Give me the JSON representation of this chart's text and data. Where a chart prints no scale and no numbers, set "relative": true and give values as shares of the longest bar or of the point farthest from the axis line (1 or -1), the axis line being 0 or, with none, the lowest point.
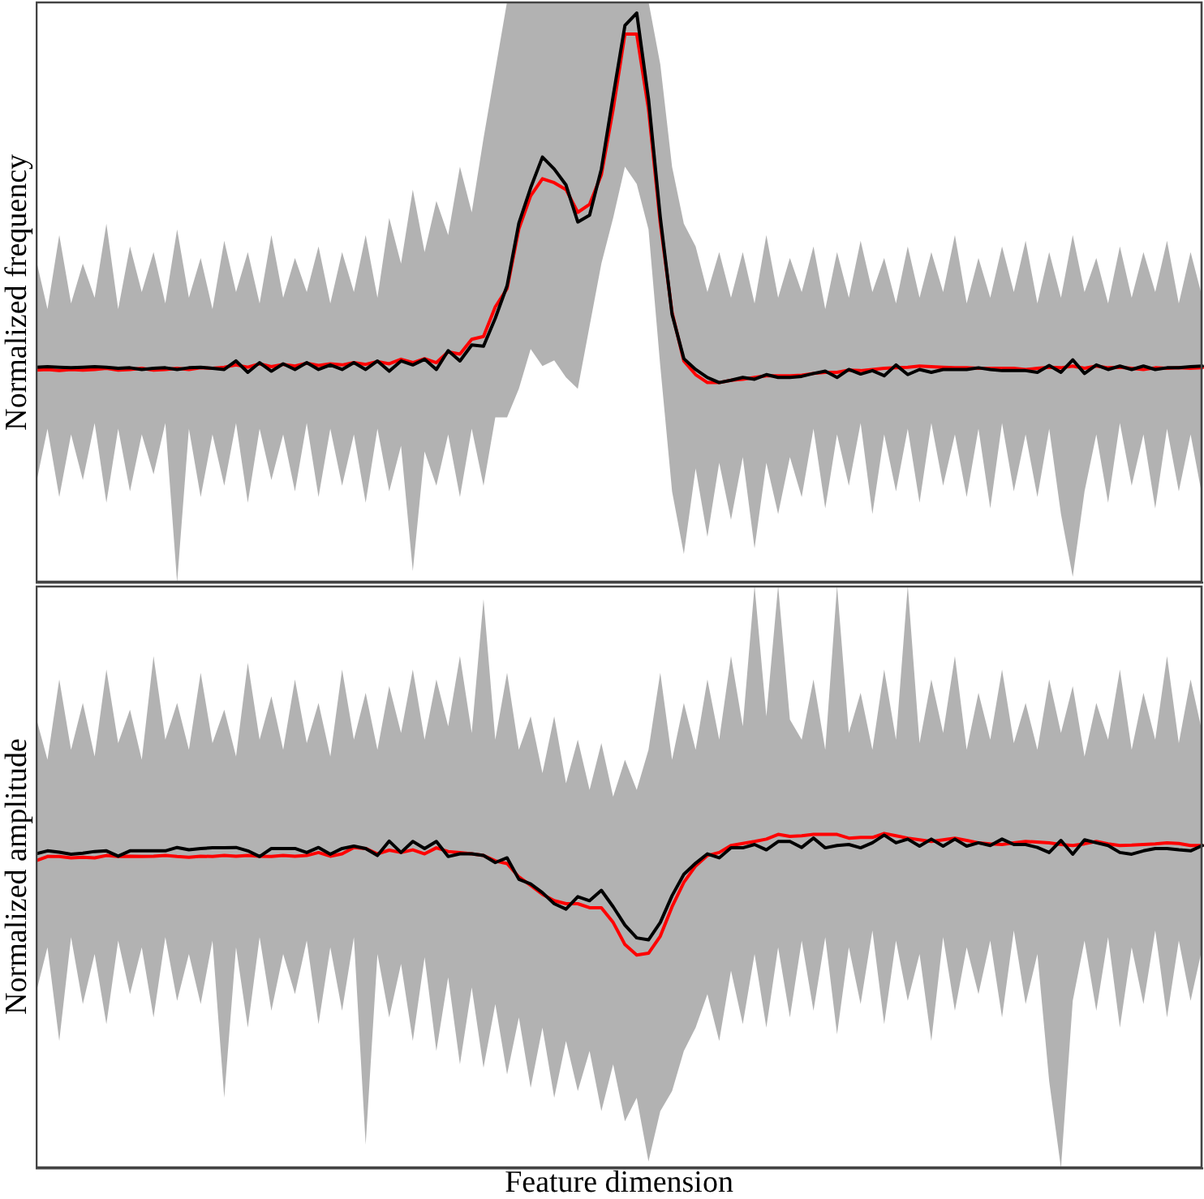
{
  "chart_data": [
    {
      "type": "line",
      "ylabel": "Normalized frequency",
      "relative": true,
      "marker": "none",
      "categories": [
        null,
        null,
        null,
        null,
        null,
        null,
        null,
        null,
        null,
        null,
        null,
        null,
        null,
        null,
        null,
        null,
        null,
        null,
        null,
        null,
        null,
        null,
        null,
        null,
        null,
        null,
        null,
        null,
        null,
        null,
        null,
        null,
        null,
        null,
        null,
        null,
        null,
        null,
        null,
        null,
        null,
        null,
        null,
        null,
        null,
        null,
        null,
        null,
        null,
        null,
        null,
        null,
        null,
        null,
        null,
        null,
        null,
        null,
        null,
        null,
        null,
        null,
        null,
        null,
        null,
        null,
        null,
        null,
        null,
        null,
        null,
        null,
        null,
        null,
        null,
        null,
        null,
        null,
        null,
        null,
        null,
        null,
        null,
        null,
        null,
        null,
        null,
        null,
        null,
        null,
        null,
        null,
        null,
        null,
        null,
        null,
        null,
        null,
        null,
        null
      ],
      "series": [
        {
          "color": "#ff0000",
          "values": [
            0.373,
            0.374,
            0.372,
            0.374,
            0.373,
            0.374,
            0.376,
            0.373,
            0.374,
            0.376,
            0.373,
            0.374,
            0.376,
            0.374,
            0.377,
            0.376,
            0.378,
            0.382,
            0.378,
            0.384,
            0.379,
            0.383,
            0.38,
            0.385,
            0.381,
            0.384,
            0.382,
            0.386,
            0.383,
            0.388,
            0.384,
            0.392,
            0.386,
            0.393,
            0.386,
            0.405,
            0.401,
            0.427,
            0.432,
            0.484,
            0.516,
            0.621,
            0.679,
            0.709,
            0.702,
            0.69,
            0.65,
            0.664,
            0.716,
            0.831,
            0.963,
            0.963,
            0.831,
            0.631,
            0.474,
            0.389,
            0.365,
            0.351,
            0.351,
            0.355,
            0.357,
            0.36,
            0.363,
            0.363,
            0.363,
            0.364,
            0.367,
            0.369,
            0.369,
            0.373,
            0.372,
            0.374,
            0.376,
            0.377,
            0.378,
            0.38,
            0.379,
            0.378,
            0.377,
            0.377,
            0.376,
            0.376,
            0.376,
            0.376,
            0.374,
            0.376,
            0.378,
            0.377,
            0.38,
            0.376,
            0.38,
            0.377,
            0.378,
            0.376,
            0.374,
            0.377,
            0.376,
            0.377,
            0.376,
            0.377
          ]
        },
        {
          "color": "#000000",
          "values": [
            0.378,
            0.379,
            0.378,
            0.377,
            0.378,
            0.379,
            0.378,
            0.376,
            0.377,
            0.374,
            0.376,
            0.377,
            0.374,
            0.377,
            0.378,
            0.376,
            0.374,
            0.389,
            0.369,
            0.386,
            0.371,
            0.384,
            0.374,
            0.386,
            0.374,
            0.382,
            0.374,
            0.386,
            0.374,
            0.389,
            0.371,
            0.389,
            0.382,
            0.392,
            0.374,
            0.407,
            0.389,
            0.417,
            0.415,
            0.464,
            0.521,
            0.631,
            0.693,
            0.747,
            0.726,
            0.698,
            0.633,
            0.645,
            0.726,
            0.854,
            0.978,
            1,
            0.849,
            0.641,
            0.471,
            0.393,
            0.374,
            0.36,
            0.351,
            0.355,
            0.36,
            0.357,
            0.365,
            0.36,
            0.36,
            0.362,
            0.367,
            0.371,
            0.36,
            0.374,
            0.366,
            0.372,
            0.363,
            0.382,
            0.365,
            0.374,
            0.369,
            0.374,
            0.374,
            0.374,
            0.377,
            0.374,
            0.372,
            0.372,
            0.372,
            0.369,
            0.381,
            0.369,
            0.391,
            0.367,
            0.382,
            0.374,
            0.38,
            0.374,
            0.38,
            0.374,
            0.377,
            0.377,
            0.379,
            0.38
          ],
          "upper": [
            0.57,
            0.48,
            0.61,
            0.49,
            0.56,
            0.5,
            0.63,
            0.48,
            0.59,
            0.51,
            0.58,
            0.49,
            0.62,
            0.5,
            0.57,
            0.48,
            0.6,
            0.51,
            0.58,
            0.49,
            0.61,
            0.5,
            0.57,
            0.51,
            0.59,
            0.49,
            0.58,
            0.51,
            0.61,
            0.5,
            0.64,
            0.56,
            0.69,
            0.58,
            0.67,
            0.61,
            0.73,
            0.65,
            0.78,
            0.9,
            1.02,
            1.02,
            1.02,
            1.02,
            1.02,
            1.02,
            1.02,
            1.02,
            1.02,
            1.02,
            1.02,
            1.02,
            1.02,
            0.91,
            0.73,
            0.63,
            0.59,
            0.51,
            0.58,
            0.5,
            0.58,
            0.49,
            0.61,
            0.5,
            0.57,
            0.51,
            0.59,
            0.48,
            0.58,
            0.5,
            0.6,
            0.51,
            0.57,
            0.49,
            0.59,
            0.5,
            0.58,
            0.51,
            0.61,
            0.49,
            0.57,
            0.5,
            0.59,
            0.51,
            0.6,
            0.49,
            0.58,
            0.5,
            0.61,
            0.51,
            0.57,
            0.49,
            0.59,
            0.5,
            0.58,
            0.51,
            0.6,
            0.49,
            0.58,
            0.5
          ],
          "lower": [
            0.17,
            0.27,
            0.15,
            0.26,
            0.18,
            0.28,
            0.14,
            0.27,
            0.16,
            0.26,
            0.19,
            0.28,
            0,
            0.27,
            0.15,
            0.26,
            0.17,
            0.28,
            0.14,
            0.27,
            0.18,
            0.26,
            0.16,
            0.28,
            0.15,
            0.27,
            0.17,
            0.26,
            0.14,
            0.27,
            0.16,
            0.24,
            0.02,
            0.23,
            0.17,
            0.26,
            0.15,
            0.27,
            0.17,
            0.29,
            0.29,
            0.34,
            0.41,
            0.38,
            0.39,
            0.36,
            0.34,
            0.45,
            0.56,
            0.64,
            0.73,
            0.7,
            0.62,
            0.38,
            0.16,
            0.05,
            0.2,
            0.08,
            0.21,
            0.11,
            0.22,
            0.06,
            0.21,
            0.12,
            0.22,
            0.15,
            0.27,
            0.13,
            0.26,
            0.17,
            0.28,
            0.12,
            0.26,
            0.16,
            0.27,
            0.14,
            0.28,
            0.17,
            0.26,
            0.15,
            0.27,
            0.13,
            0.28,
            0.16,
            0.26,
            0.15,
            0.27,
            0.12,
            0.01,
            0.16,
            0.26,
            0.14,
            0.28,
            0.17,
            0.26,
            0.13,
            0.27,
            0.16,
            0.26,
            0.15
          ]
        }
      ]
    },
    {
      "type": "line",
      "xlabel": "Feature dimension",
      "ylabel": "Normalized amplitude",
      "relative": true,
      "marker": "none",
      "categories": [
        null,
        null,
        null,
        null,
        null,
        null,
        null,
        null,
        null,
        null,
        null,
        null,
        null,
        null,
        null,
        null,
        null,
        null,
        null,
        null,
        null,
        null,
        null,
        null,
        null,
        null,
        null,
        null,
        null,
        null,
        null,
        null,
        null,
        null,
        null,
        null,
        null,
        null,
        null,
        null,
        null,
        null,
        null,
        null,
        null,
        null,
        null,
        null,
        null,
        null,
        null,
        null,
        null,
        null,
        null,
        null,
        null,
        null,
        null,
        null,
        null,
        null,
        null,
        null,
        null,
        null,
        null,
        null,
        null,
        null,
        null,
        null,
        null,
        null,
        null,
        null,
        null,
        null,
        null,
        null,
        null,
        null,
        null,
        null,
        null,
        null,
        null,
        null,
        null,
        null,
        null,
        null,
        null,
        null,
        null,
        null,
        null,
        null,
        null,
        null
      ],
      "series": [
        {
          "color": "#ff0000",
          "values": [
            0.918,
            0.931,
            0.931,
            0.927,
            0.929,
            0.927,
            0.934,
            0.931,
            0.932,
            0.931,
            0.932,
            0.934,
            0.931,
            0.929,
            0.932,
            0.931,
            0.934,
            0.932,
            0.934,
            0.932,
            0.931,
            0.934,
            0.932,
            0.934,
            0.943,
            0.932,
            0.939,
            0.958,
            0.955,
            0.939,
            0.95,
            0.943,
            0.951,
            0.939,
            0.957,
            0.946,
            0.943,
            0.939,
            0.934,
            0.918,
            0.91,
            0.87,
            0.845,
            0.818,
            0.799,
            0.79,
            0.79,
            0.778,
            0.778,
            0.734,
            0.668,
            0.637,
            0.642,
            0.693,
            0.781,
            0.854,
            0.903,
            0.934,
            0.943,
            0.964,
            0.97,
            0.976,
            0.983,
            0.997,
            0.991,
            0.993,
            0.997,
            0.997,
            0.997,
            0.986,
            0.988,
            0.988,
            1,
            0.993,
            0.986,
            0.981,
            0.976,
            0.981,
            0.986,
            0.979,
            0.972,
            0.969,
            0.967,
            0.972,
            0.976,
            0.974,
            0.972,
            0.967,
            0.964,
            0.969,
            0.976,
            0.969,
            0.964,
            0.965,
            0.967,
            0.969,
            0.972,
            0.97,
            0.964,
            0.964
          ]
        },
        {
          "color": "#000000",
          "values": [
            0.939,
            0.948,
            0.944,
            0.938,
            0.941,
            0.946,
            0.948,
            0.932,
            0.948,
            0.948,
            0.948,
            0.948,
            0.958,
            0.951,
            0.955,
            0.957,
            0.957,
            0.958,
            0.948,
            0.931,
            0.955,
            0.955,
            0.955,
            0.943,
            0.958,
            0.938,
            0.955,
            0.962,
            0.955,
            0.934,
            0.977,
            0.943,
            0.976,
            0.955,
            0.976,
            0.931,
            0.939,
            0.939,
            0.934,
            0.913,
            0.927,
            0.863,
            0.849,
            0.823,
            0.79,
            0.774,
            0.811,
            0.799,
            0.83,
            0.781,
            0.726,
            0.688,
            0.682,
            0.734,
            0.814,
            0.878,
            0.911,
            0.939,
            0.927,
            0.957,
            0.957,
            0.967,
            0.951,
            0.976,
            0.976,
            0.958,
            0.986,
            0.957,
            0.964,
            0.967,
            0.957,
            0.972,
            0.995,
            0.972,
            0.983,
            0.962,
            0.983,
            0.962,
            0.983,
            0.962,
            0.972,
            0.964,
            0.983,
            0.967,
            0.967,
            0.958,
            0.943,
            0.979,
            0.938,
            0.981,
            0.972,
            0.964,
            0.943,
            0.938,
            0.948,
            0.955,
            0.955,
            0.951,
            0.948,
            0.964
          ],
          "upper": [
            1.35,
            1.22,
            1.46,
            1.25,
            1.39,
            1.23,
            1.49,
            1.27,
            1.37,
            1.22,
            1.53,
            1.28,
            1.39,
            1.25,
            1.48,
            1.27,
            1.37,
            1.23,
            1.51,
            1.28,
            1.41,
            1.25,
            1.46,
            1.27,
            1.39,
            1.23,
            1.49,
            1.28,
            1.42,
            1.25,
            1.44,
            1.3,
            1.49,
            1.28,
            1.46,
            1.32,
            1.53,
            1.3,
            1.7,
            1.28,
            1.48,
            1.25,
            1.35,
            1.18,
            1.35,
            1.15,
            1.28,
            1.13,
            1.27,
            1.11,
            1.22,
            1.13,
            1.25,
            1.48,
            1.22,
            1.39,
            1.25,
            1.46,
            1.28,
            1.53,
            1.32,
            1.74,
            1.35,
            1.74,
            1.34,
            1.28,
            1.46,
            1.25,
            1.74,
            1.3,
            1.42,
            1.25,
            1.49,
            1.28,
            1.74,
            1.27,
            1.46,
            1.3,
            1.53,
            1.25,
            1.42,
            1.28,
            1.49,
            1.27,
            1.39,
            1.25,
            1.46,
            1.3,
            1.44,
            1.23,
            1.39,
            1.28,
            1.49,
            1.25,
            1.42,
            1.28,
            1.53,
            1.27,
            1.46,
            1.3
          ],
          "lower": [
            0.52,
            0.66,
            0.38,
            0.69,
            0.49,
            0.64,
            0.43,
            0.68,
            0.52,
            0.66,
            0.45,
            0.69,
            0.5,
            0.64,
            0.49,
            0.68,
            0.21,
            0.66,
            0.42,
            0.69,
            0.47,
            0.64,
            0.52,
            0.68,
            0.43,
            0.66,
            0.47,
            0.69,
            0.07,
            0.64,
            0.45,
            0.61,
            0.38,
            0.63,
            0.35,
            0.57,
            0.31,
            0.54,
            0.3,
            0.49,
            0.28,
            0.45,
            0.24,
            0.42,
            0.21,
            0.38,
            0.23,
            0.35,
            0.17,
            0.31,
            0.14,
            0.21,
            0.02,
            0.17,
            0.23,
            0.35,
            0.42,
            0.52,
            0.38,
            0.59,
            0.43,
            0.64,
            0.42,
            0.66,
            0.45,
            0.68,
            0.47,
            0.69,
            0.4,
            0.66,
            0.49,
            0.71,
            0.43,
            0.68,
            0.5,
            0.64,
            0.38,
            0.69,
            0.47,
            0.66,
            0.52,
            0.68,
            0.45,
            0.71,
            0.49,
            0.64,
            0.26,
            0,
            0.5,
            0.68,
            0.47,
            0.69,
            0.42,
            0.66,
            0.49,
            0.71,
            0.45,
            0.68,
            0.5,
            0.66
          ]
        }
      ]
    }
  ]
}
